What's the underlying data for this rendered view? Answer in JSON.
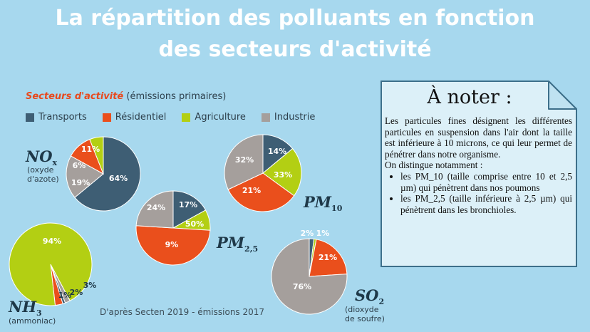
{
  "title": {
    "line1": "La répartition des polluants en fonction",
    "line2": "des secteurs d'activité"
  },
  "legend": {
    "heading_bold": "Secteurs d'activité",
    "heading_rest": " (émissions primaires)",
    "items": [
      {
        "label": "Transports",
        "color": "#3e5e74"
      },
      {
        "label": "Résidentiel",
        "color": "#ea4f1c"
      },
      {
        "label": "Agriculture",
        "color": "#b3cf13"
      },
      {
        "label": "Industrie",
        "color": "#a59f9c"
      }
    ]
  },
  "chart_data": [
    {
      "type": "pie",
      "pollutant": "NOx",
      "subtitle": "(oxyde d'azote)",
      "categories": [
        "Transports",
        "Résidentiel",
        "Agriculture",
        "Industrie"
      ],
      "values": [
        64,
        11,
        6,
        19
      ],
      "labels": [
        "64%",
        "11%",
        "6%",
        "19%"
      ]
    },
    {
      "type": "pie",
      "pollutant": "PM10",
      "subtitle": "",
      "categories": [
        "Transports",
        "Résidentiel",
        "Agriculture",
        "Industrie"
      ],
      "values": [
        14,
        33,
        21,
        32
      ],
      "labels": [
        "14%",
        "33%",
        "21%",
        "32%"
      ]
    },
    {
      "type": "pie",
      "pollutant": "PM2,5",
      "subtitle": "",
      "categories": [
        "Transports",
        "Résidentiel",
        "Agriculture",
        "Industrie"
      ],
      "values": [
        17,
        50,
        9,
        24
      ],
      "labels": [
        "17%",
        "50%",
        "9%",
        "24%"
      ]
    },
    {
      "type": "pie",
      "pollutant": "NH3",
      "subtitle": "(ammoniac)",
      "categories": [
        "Transports",
        "Résidentiel",
        "Agriculture",
        "Industrie"
      ],
      "values": [
        1,
        3,
        94,
        2
      ],
      "labels": [
        "1%",
        "3%",
        "94%",
        "2%"
      ]
    },
    {
      "type": "pie",
      "pollutant": "SO2",
      "subtitle": "(dioxyde de soufre)",
      "categories": [
        "Transports",
        "Résidentiel",
        "Agriculture",
        "Industrie"
      ],
      "values": [
        2,
        21,
        1,
        76
      ],
      "labels": [
        "2%",
        "21%",
        "1%",
        "76%"
      ]
    }
  ],
  "charts_text": {
    "nox": {
      "main": "NO",
      "sub": "x",
      "desc1": "(oxyde",
      "desc2": "d'azote)"
    },
    "pm10": {
      "main": "PM",
      "sub": "10"
    },
    "pm25": {
      "main": "PM",
      "sub": "2,5"
    },
    "nh3": {
      "main": "NH",
      "sub": "3",
      "desc1": "(ammoniac)"
    },
    "so2": {
      "main": "SO",
      "sub": "2",
      "desc1": "(dioxyde",
      "desc2": "de soufre)"
    }
  },
  "source": "D'après Secten 2019 - émissions 2017",
  "note": {
    "title": "À noter :",
    "paragraph": "Les particules fines désignent les différentes particules en suspension dans l'air dont la taille est inférieure à 10 microns, ce qui leur permet de pénétrer dans notre organisme.",
    "intro": "On distingue notamment :",
    "bullets": [
      "les PM_10 (taille comprise entre 10 et 2,5 µm) qui pénètrent dans nos poumons",
      "les PM_2,5 (taille inférieure à 2,5 µm) qui pénètrent dans les bronchioles."
    ]
  }
}
